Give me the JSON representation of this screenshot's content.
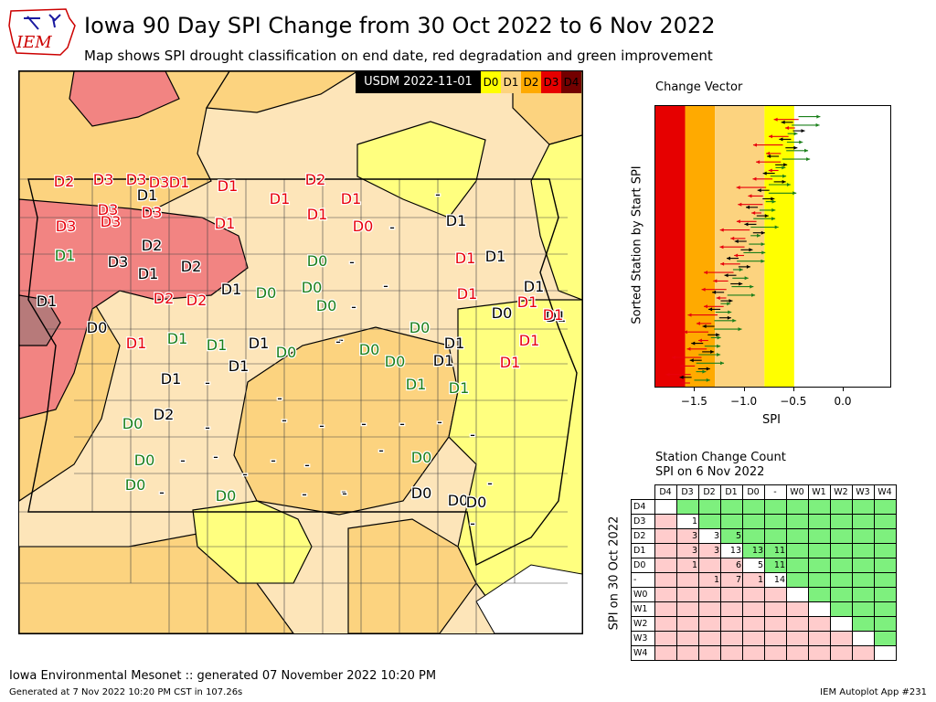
{
  "header": {
    "logo_text": "IEM",
    "title": "Iowa 90 Day SPI Change from 30 Oct 2022 to 6 Nov 2022",
    "subtitle": "Map shows SPI drought classification on end date, red degradation and green improvement"
  },
  "map": {
    "usdm_label": "USDM 2022-11-01",
    "legend": [
      {
        "label": "D0",
        "color": "#ffff00"
      },
      {
        "label": "D1",
        "color": "#fcd37f"
      },
      {
        "label": "D2",
        "color": "#ffaa00"
      },
      {
        "label": "D3",
        "color": "#e60000"
      },
      {
        "label": "D4",
        "color": "#730000"
      }
    ],
    "colors": {
      "degradation": "#e8000b",
      "improvement": "#1a7f1a",
      "unchanged": "#000000"
    },
    "station_labels": [
      {
        "t": "D2",
        "c": "r"
      },
      {
        "t": "D3",
        "c": "r"
      },
      {
        "t": "D3",
        "c": "r"
      },
      {
        "t": "D3",
        "c": "r"
      },
      {
        "t": "D1",
        "c": "r"
      },
      {
        "t": "D1",
        "c": "k"
      },
      {
        "t": "D1",
        "c": "r"
      },
      {
        "t": "D2",
        "c": "r"
      },
      {
        "t": "D1",
        "c": "r"
      },
      {
        "t": "D1",
        "c": "r"
      },
      {
        "t": "D1",
        "c": "r"
      },
      {
        "t": "D3",
        "c": "r"
      },
      {
        "t": "D3",
        "c": "r"
      },
      {
        "t": "D3",
        "c": "r"
      },
      {
        "t": "D3",
        "c": "r"
      },
      {
        "t": "D1",
        "c": "r"
      },
      {
        "t": "D0",
        "c": "r"
      },
      {
        "t": "-",
        "c": "k"
      },
      {
        "t": "-",
        "c": "k"
      },
      {
        "t": "D1",
        "c": "k"
      },
      {
        "t": "D1",
        "c": "g"
      },
      {
        "t": "D2",
        "c": "k"
      },
      {
        "t": "D3",
        "c": "k"
      },
      {
        "t": "D1",
        "c": "k"
      },
      {
        "t": "D2",
        "c": "k"
      },
      {
        "t": "D0",
        "c": "g"
      },
      {
        "t": "-",
        "c": "k"
      },
      {
        "t": "-",
        "c": "k"
      },
      {
        "t": "D1",
        "c": "r"
      },
      {
        "t": "D1",
        "c": "k"
      },
      {
        "t": "D1",
        "c": "k"
      },
      {
        "t": "D2",
        "c": "r"
      },
      {
        "t": "D2",
        "c": "r"
      },
      {
        "t": "D1",
        "c": "k"
      },
      {
        "t": "D0",
        "c": "g"
      },
      {
        "t": "D0",
        "c": "g"
      },
      {
        "t": "-",
        "c": "k"
      },
      {
        "t": "D1",
        "c": "r"
      },
      {
        "t": "D1",
        "c": "k"
      },
      {
        "t": "D1",
        "c": "r"
      },
      {
        "t": "D0",
        "c": "g"
      },
      {
        "t": "-",
        "c": "k"
      },
      {
        "t": "D0",
        "c": "k"
      },
      {
        "t": "D1",
        "c": "r"
      },
      {
        "t": "D0",
        "c": "k"
      },
      {
        "t": "D1",
        "c": "k"
      },
      {
        "t": "D0",
        "c": "g"
      },
      {
        "t": "-",
        "c": "k"
      },
      {
        "t": "D1",
        "c": "r"
      },
      {
        "t": "D1",
        "c": "g"
      },
      {
        "t": "D1",
        "c": "g"
      },
      {
        "t": "D1",
        "c": "k"
      },
      {
        "t": "D0",
        "c": "g"
      },
      {
        "t": "D0",
        "c": "g"
      },
      {
        "t": "D0",
        "c": "g"
      },
      {
        "t": "D1",
        "c": "k"
      },
      {
        "t": "D1",
        "c": "r"
      },
      {
        "t": "D1",
        "c": "r"
      },
      {
        "t": "D1",
        "c": "k"
      },
      {
        "t": "D1",
        "c": "k"
      },
      {
        "t": "D1",
        "c": "k"
      },
      {
        "t": "-",
        "c": "k"
      },
      {
        "t": "-",
        "c": "k"
      },
      {
        "t": "D1",
        "c": "g"
      },
      {
        "t": "D1",
        "c": "g"
      },
      {
        "t": "D0",
        "c": "g"
      },
      {
        "t": "D2",
        "c": "k"
      },
      {
        "t": "-",
        "c": "k"
      },
      {
        "t": "-",
        "c": "k"
      },
      {
        "t": "-",
        "c": "k"
      },
      {
        "t": "-",
        "c": "k"
      },
      {
        "t": "-",
        "c": "k"
      },
      {
        "t": "-",
        "c": "k"
      },
      {
        "t": "-",
        "c": "k"
      },
      {
        "t": "D0",
        "c": "g"
      },
      {
        "t": "-",
        "c": "k"
      },
      {
        "t": "-",
        "c": "k"
      },
      {
        "t": "-",
        "c": "k"
      },
      {
        "t": "-",
        "c": "k"
      },
      {
        "t": "-",
        "c": "k"
      },
      {
        "t": "-",
        "c": "k"
      },
      {
        "t": "-",
        "c": "k"
      },
      {
        "t": "D0",
        "c": "g"
      },
      {
        "t": "D0",
        "c": "g"
      },
      {
        "t": "-",
        "c": "k"
      },
      {
        "t": "D0",
        "c": "g"
      },
      {
        "t": "-",
        "c": "k"
      },
      {
        "t": "-",
        "c": "k"
      },
      {
        "t": "D0",
        "c": "k"
      },
      {
        "t": "-",
        "c": "k"
      },
      {
        "t": "D0",
        "c": "k"
      },
      {
        "t": "D0",
        "c": "k"
      },
      {
        "t": "-",
        "c": "k"
      }
    ]
  },
  "change_vector": {
    "title": "Change Vector",
    "xlabel": "SPI",
    "ylabel": "Sorted Station by Start SPI",
    "xticks": [
      "−1.5",
      "−1.0",
      "−0.5",
      "0.0"
    ],
    "xtick_values": [
      -1.5,
      -1.0,
      -0.5,
      0.0
    ],
    "xlim": [
      -1.9,
      0.47
    ],
    "bands": [
      {
        "from": -2.0,
        "to": -1.6,
        "color": "#e60000"
      },
      {
        "from": -1.6,
        "to": -1.3,
        "color": "#ffaa00"
      },
      {
        "from": -1.3,
        "to": -0.8,
        "color": "#fcd37f"
      },
      {
        "from": -0.8,
        "to": -0.5,
        "color": "#ffff00"
      }
    ]
  },
  "station_change": {
    "title_line1": "Station Change Count",
    "title_line2": "SPI on 6 Nov 2022",
    "ylabel": "SPI on 30 Oct 2022",
    "columns": [
      "D4",
      "D3",
      "D2",
      "D1",
      "D0",
      "-",
      "W0",
      "W1",
      "W2",
      "W3",
      "W4"
    ],
    "rows": [
      "D4",
      "D3",
      "D2",
      "D1",
      "D0",
      "-",
      "W0",
      "W1",
      "W2",
      "W3",
      "W4"
    ],
    "counts": [
      [
        "",
        "",
        "",
        "",
        "",
        "",
        "",
        "",
        "",
        "",
        ""
      ],
      [
        "",
        "1",
        "",
        "",
        "",
        "",
        "",
        "",
        "",
        "",
        ""
      ],
      [
        "",
        "3",
        "3",
        "5",
        "",
        "",
        "",
        "",
        "",
        "",
        ""
      ],
      [
        "",
        "3",
        "3",
        "13",
        "13",
        "11",
        "",
        "",
        "",
        "",
        ""
      ],
      [
        "",
        "1",
        "",
        "6",
        "5",
        "11",
        "",
        "",
        "",
        "",
        ""
      ],
      [
        "",
        "",
        "1",
        "7",
        "1",
        "14",
        "",
        "",
        "",
        "",
        ""
      ],
      [
        "",
        "",
        "",
        "",
        "",
        "",
        "",
        "",
        "",
        "",
        ""
      ],
      [
        "",
        "",
        "",
        "",
        "",
        "",
        "",
        "",
        "",
        "",
        ""
      ],
      [
        "",
        "",
        "",
        "",
        "",
        "",
        "",
        "",
        "",
        "",
        ""
      ],
      [
        "",
        "",
        "",
        "",
        "",
        "",
        "",
        "",
        "",
        "",
        ""
      ],
      [
        "",
        "",
        "",
        "",
        "",
        "",
        "",
        "",
        "",
        "",
        ""
      ]
    ]
  },
  "footer": {
    "source": "Iowa Environmental Mesonet :: generated 07 November 2022 10:20 PM",
    "generated": "Generated at 7 Nov 2022 10:20 PM CST in 107.26s",
    "app": "IEM Autoplot App #231"
  }
}
